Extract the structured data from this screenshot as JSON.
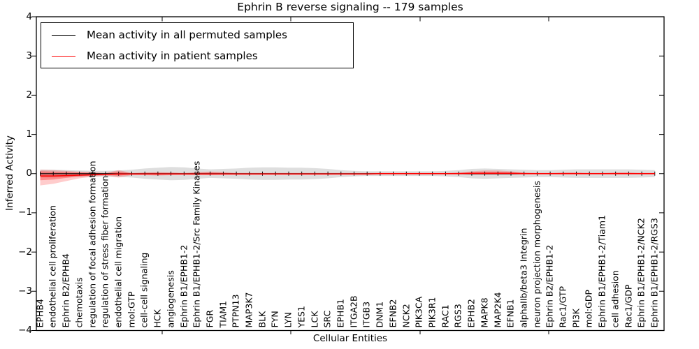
{
  "chart_data": {
    "type": "line",
    "title": "Ephrin B reverse signaling -- 179 samples",
    "xlabel": "Cellular Entities",
    "ylabel": "Inferred Activity",
    "ylim": [
      -4,
      4
    ],
    "y_ticks": [
      4,
      3,
      2,
      1,
      0,
      -1,
      -2,
      -3,
      -4
    ],
    "grid": false,
    "legend_position": "upper left",
    "legend": [
      {
        "label": "Mean activity in all permuted samples",
        "color": "#000000"
      },
      {
        "label": "Mean activity in patient samples",
        "color": "#ff0000"
      }
    ],
    "categories": [
      "EPHB4",
      "endothelial cell proliferation",
      "Ephrin B2/EPHB4",
      "chemotaxis",
      "regulation of focal adhesion formation",
      "regulation of stress fiber formation",
      "endothelial cell migration",
      "mol:GTP",
      "cell-cell signaling",
      "HCK",
      "angiogenesis",
      "Ephrin B1/EPHB1-2",
      "Ephrin B1/EPHB1-2/Src Family Kinases",
      "FGR",
      "TIAM1",
      "PTPN13",
      "MAP3K7",
      "BLK",
      "FYN",
      "LYN",
      "YES1",
      "LCK",
      "SRC",
      "EPHB1",
      "ITGA2B",
      "ITGB3",
      "DNM1",
      "EFNB2",
      "NCK2",
      "PIK3CA",
      "PIK3R1",
      "RAC1",
      "RGS3",
      "EPHB2",
      "MAPK8",
      "MAP2K4",
      "EFNB1",
      "alphaIIb/beta3 Integrin",
      "neuron projection morphogenesis",
      "Ephrin B2/EPHB1-2",
      "Rac1/GTP",
      "PI3K",
      "mol:GDP",
      "Ephrin B1/EPHB1-2/Tiam1",
      "cell adhesion",
      "Rac1/GDP",
      "Ephrin B1/EPHB1-2/NCK2",
      "Ephrin B1/EPHB1-2/RGS3"
    ],
    "series": [
      {
        "name": "Mean activity in all permuted samples",
        "color": "#000000",
        "values": [
          0,
          0,
          0,
          0,
          0,
          0,
          0,
          0,
          0,
          0,
          0,
          0,
          0,
          0,
          0,
          0,
          0,
          0,
          0,
          0,
          0,
          0,
          0,
          0,
          0,
          0,
          0,
          0,
          0,
          0,
          0,
          0,
          0,
          0,
          0,
          0,
          0,
          0,
          0,
          0,
          0,
          0,
          0,
          0,
          0,
          0,
          0,
          0
        ],
        "band_color": "#000000",
        "band_half_width": [
          0.1,
          0.1,
          0.09,
          0.08,
          0.07,
          0.07,
          0.08,
          0.1,
          0.13,
          0.15,
          0.17,
          0.16,
          0.13,
          0.11,
          0.12,
          0.13,
          0.15,
          0.16,
          0.16,
          0.15,
          0.15,
          0.14,
          0.12,
          0.09,
          0.07,
          0.06,
          0.06,
          0.06,
          0.06,
          0.06,
          0.06,
          0.07,
          0.09,
          0.12,
          0.13,
          0.12,
          0.11,
          0.1,
          0.09,
          0.09,
          0.1,
          0.11,
          0.11,
          0.11,
          0.11,
          0.11,
          0.1,
          0.09
        ]
      },
      {
        "name": "Mean activity in patient samples",
        "color": "#ff0000",
        "values": [
          -0.06,
          -0.06,
          -0.05,
          -0.04,
          -0.03,
          -0.02,
          -0.01,
          -0.01,
          -0.01,
          -0.01,
          -0.01,
          -0.01,
          -0.01,
          -0.01,
          -0.01,
          -0.01,
          -0.01,
          -0.01,
          -0.01,
          -0.01,
          -0.01,
          -0.01,
          -0.01,
          -0.01,
          -0.01,
          -0.01,
          0,
          0,
          0,
          0,
          0,
          0,
          0,
          0.01,
          0.01,
          0.01,
          0.01,
          0,
          0,
          0,
          0,
          0,
          0,
          0,
          0,
          0,
          0,
          0
        ],
        "band_color": "#ff0000",
        "band_outer_upper": [
          0.1,
          0.09,
          0.07,
          0.05,
          0.04,
          0.02,
          0.09,
          0.02,
          0.03,
          0.04,
          0.03,
          0.02,
          0.04,
          0.05,
          0.04,
          0.02,
          0.02,
          0.02,
          0.02,
          0.02,
          0.02,
          0.02,
          0.02,
          0.02,
          0.02,
          0.02,
          0.02,
          0.02,
          0.02,
          0.02,
          0.02,
          0.02,
          0.03,
          0.06,
          0.08,
          0.08,
          0.06,
          0.03,
          0.02,
          0.02,
          0.03,
          0.03,
          0.02,
          0.02,
          0.03,
          0.03,
          0.02,
          0.02
        ],
        "band_outer_lower": [
          -0.3,
          -0.26,
          -0.19,
          -0.12,
          -0.08,
          -0.05,
          -0.1,
          -0.04,
          -0.04,
          -0.05,
          -0.04,
          -0.03,
          -0.04,
          -0.04,
          -0.03,
          -0.03,
          -0.03,
          -0.03,
          -0.03,
          -0.03,
          -0.03,
          -0.03,
          -0.03,
          -0.02,
          -0.02,
          -0.02,
          -0.02,
          -0.02,
          -0.02,
          -0.02,
          -0.02,
          -0.02,
          -0.02,
          -0.03,
          -0.03,
          -0.03,
          -0.03,
          -0.02,
          -0.02,
          -0.02,
          -0.02,
          -0.02,
          -0.02,
          -0.02,
          -0.02,
          -0.02,
          -0.02,
          -0.02
        ],
        "band_inner_upper": [
          0.06,
          0.05,
          0.04,
          0.03,
          0.02,
          0.01,
          0.05,
          0.01,
          0.02,
          0.02,
          0.02,
          0.01,
          0.02,
          0.03,
          0.02,
          0.01,
          0.01,
          0.01,
          0.01,
          0.01,
          0.01,
          0.01,
          0.01,
          0.01,
          0.01,
          0.01,
          0.01,
          0.01,
          0.01,
          0.01,
          0.01,
          0.01,
          0.02,
          0.03,
          0.04,
          0.04,
          0.03,
          0.02,
          0.01,
          0.01,
          0.02,
          0.02,
          0.01,
          0.01,
          0.02,
          0.02,
          0.01,
          0.01
        ],
        "band_inner_lower": [
          -0.17,
          -0.15,
          -0.11,
          -0.07,
          -0.05,
          -0.03,
          -0.05,
          -0.02,
          -0.02,
          -0.03,
          -0.02,
          -0.02,
          -0.02,
          -0.02,
          -0.02,
          -0.02,
          -0.02,
          -0.02,
          -0.02,
          -0.02,
          -0.02,
          -0.02,
          -0.02,
          -0.01,
          -0.01,
          -0.01,
          -0.01,
          -0.01,
          -0.01,
          -0.01,
          -0.01,
          -0.01,
          -0.01,
          -0.02,
          -0.02,
          -0.02,
          -0.02,
          -0.01,
          -0.01,
          -0.01,
          -0.01,
          -0.01,
          -0.01,
          -0.01,
          -0.01,
          -0.01,
          -0.01,
          -0.01
        ]
      }
    ]
  }
}
